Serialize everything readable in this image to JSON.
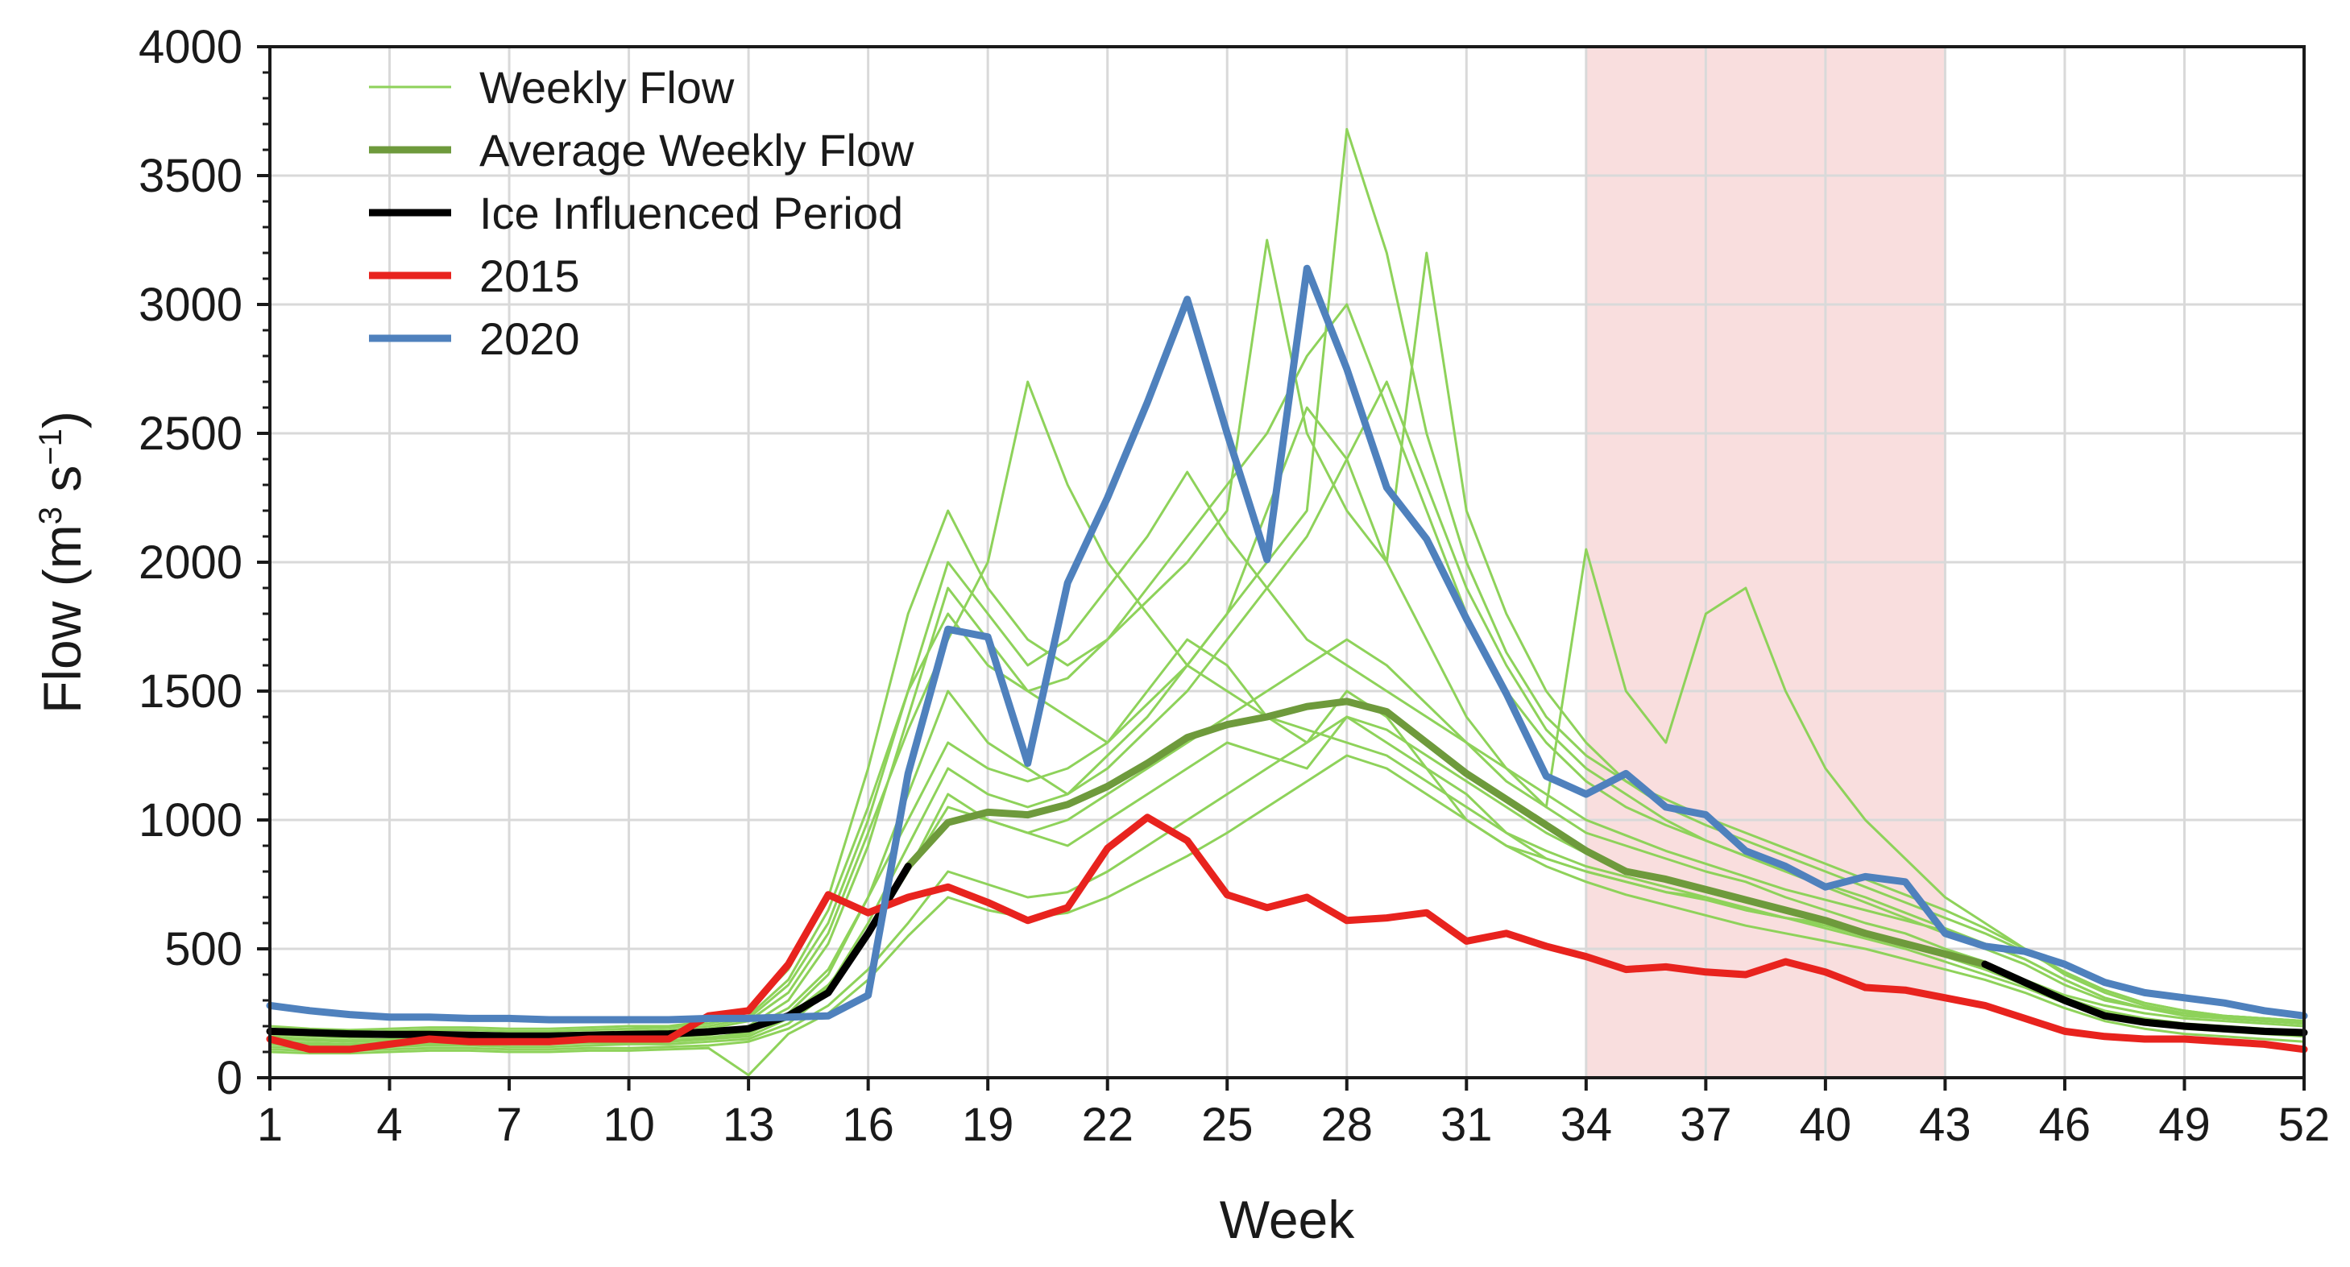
{
  "chart_data": {
    "type": "line",
    "title": "",
    "xlabel": "Week",
    "ylabel_main": "Flow (m",
    "ylabel_sup1": "3",
    "ylabel_mid": " s",
    "ylabel_sup2": "−1",
    "ylabel_end": ")",
    "xlim": [
      1,
      52
    ],
    "ylim": [
      0,
      4000
    ],
    "x_ticks": [
      1,
      4,
      7,
      10,
      13,
      16,
      19,
      22,
      25,
      28,
      31,
      34,
      37,
      40,
      43,
      46,
      49,
      52
    ],
    "y_ticks": [
      0,
      500,
      1000,
      1500,
      2000,
      2500,
      3000,
      3500,
      4000
    ],
    "grid": true,
    "legend_position": "top-left",
    "shaded_region": {
      "from_week": 34,
      "to_week": 43,
      "color": "#f9dede"
    },
    "legend": [
      {
        "key": "weekly",
        "label": "Weekly Flow",
        "color": "#8ed25a"
      },
      {
        "key": "average",
        "label": "Average Weekly Flow",
        "color": "#6e9a3c"
      },
      {
        "key": "ice",
        "label": "Ice Influenced Period",
        "color": "#000000"
      },
      {
        "key": "y2015",
        "label": "2015",
        "color": "#e8231e"
      },
      {
        "key": "y2020",
        "label": "2020",
        "color": "#4f81bd"
      }
    ],
    "series": [
      {
        "name": "Average Weekly Flow",
        "color": "#6e9a3c",
        "x": [
          17,
          18,
          19,
          20,
          21,
          22,
          23,
          24,
          25,
          26,
          27,
          28,
          29,
          30,
          31,
          32,
          33,
          34,
          35,
          36,
          37,
          38,
          39,
          40,
          41,
          42,
          43,
          44
        ],
        "values": [
          820,
          990,
          1030,
          1020,
          1060,
          1130,
          1220,
          1320,
          1370,
          1400,
          1440,
          1460,
          1420,
          1300,
          1180,
          1080,
          980,
          880,
          800,
          770,
          730,
          690,
          650,
          610,
          560,
          520,
          480,
          440
        ]
      },
      {
        "name": "Ice Influenced Period (early)",
        "color": "#000000",
        "x": [
          1,
          2,
          3,
          4,
          5,
          6,
          7,
          8,
          9,
          10,
          11,
          12,
          13,
          14,
          15,
          16,
          17
        ],
        "values": [
          180,
          175,
          170,
          168,
          168,
          165,
          162,
          162,
          165,
          168,
          170,
          178,
          190,
          240,
          330,
          560,
          820
        ]
      },
      {
        "name": "Ice Influenced Period (late)",
        "color": "#000000",
        "x": [
          44,
          45,
          46,
          47,
          48,
          49,
          50,
          51,
          52
        ],
        "values": [
          440,
          370,
          300,
          240,
          215,
          200,
          190,
          180,
          175
        ]
      },
      {
        "name": "2015",
        "color": "#e8231e",
        "x": [
          1,
          2,
          3,
          4,
          5,
          6,
          7,
          8,
          9,
          10,
          11,
          12,
          13,
          14,
          15,
          16,
          17,
          18,
          19,
          20,
          21,
          22,
          23,
          24,
          25,
          26,
          27,
          28,
          29,
          30,
          31,
          32,
          33,
          34,
          35,
          36,
          37,
          38,
          39,
          40,
          41,
          42,
          43,
          44,
          45,
          46,
          47,
          48,
          49,
          50,
          51,
          52
        ],
        "values": [
          150,
          110,
          110,
          130,
          150,
          140,
          140,
          140,
          150,
          150,
          150,
          240,
          260,
          440,
          710,
          640,
          700,
          740,
          680,
          610,
          660,
          890,
          1010,
          920,
          710,
          660,
          700,
          610,
          620,
          640,
          530,
          560,
          510,
          470,
          420,
          430,
          410,
          400,
          450,
          410,
          350,
          340,
          310,
          280,
          230,
          180,
          160,
          150,
          150,
          140,
          130,
          110
        ]
      },
      {
        "name": "2020",
        "color": "#4f81bd",
        "x": [
          1,
          2,
          3,
          4,
          5,
          6,
          7,
          8,
          9,
          10,
          11,
          12,
          13,
          14,
          15,
          16,
          17,
          18,
          19,
          20,
          21,
          22,
          23,
          24,
          25,
          26,
          27,
          28,
          29,
          30,
          31,
          32,
          33,
          34,
          35,
          36,
          37,
          38,
          39,
          40,
          41,
          42,
          43,
          44,
          45,
          46,
          47,
          48,
          49,
          50,
          51,
          52
        ],
        "values": [
          280,
          260,
          245,
          235,
          235,
          230,
          230,
          225,
          225,
          225,
          225,
          230,
          230,
          235,
          240,
          320,
          1180,
          1740,
          1710,
          1220,
          1920,
          2250,
          2620,
          3020,
          2500,
          2010,
          3140,
          2750,
          2290,
          2090,
          1780,
          1490,
          1170,
          1100,
          1180,
          1050,
          1020,
          880,
          820,
          740,
          780,
          760,
          560,
          510,
          490,
          440,
          370,
          330,
          310,
          290,
          260,
          240
        ]
      }
    ],
    "weekly_flow_traces": [
      [
        160,
        150,
        145,
        150,
        155,
        150,
        150,
        150,
        155,
        160,
        165,
        180,
        200,
        300,
        520,
        900,
        1400,
        1900,
        1700,
        1500,
        1400,
        1300,
        1500,
        1700,
        1600,
        1400,
        1300,
        1500,
        1400,
        1200,
        1000,
        900,
        850,
        800,
        760,
        720,
        700,
        650,
        620,
        600,
        560,
        520,
        480,
        430,
        380,
        320,
        280,
        250,
        230,
        220,
        210,
        200
      ],
      [
        140,
        130,
        130,
        135,
        140,
        140,
        135,
        135,
        140,
        140,
        145,
        150,
        170,
        250,
        400,
        700,
        1100,
        1500,
        1300,
        1200,
        1100,
        1250,
        1400,
        1600,
        1800,
        2200,
        2600,
        2400,
        2000,
        1700,
        1400,
        1200,
        1050,
        950,
        900,
        850,
        800,
        760,
        700,
        650,
        600,
        560,
        500,
        450,
        380,
        300,
        250,
        220,
        200,
        190,
        180,
        170
      ],
      [
        120,
        115,
        115,
        120,
        125,
        125,
        120,
        120,
        125,
        130,
        130,
        140,
        150,
        210,
        330,
        550,
        800,
        1100,
        1000,
        950,
        900,
        1000,
        1100,
        1200,
        1300,
        1250,
        1200,
        1400,
        1300,
        1200,
        1100,
        950,
        850,
        800,
        760,
        720,
        690,
        650,
        620,
        580,
        540,
        500,
        450,
        400,
        350,
        290,
        240,
        210,
        190,
        180,
        170,
        160
      ],
      [
        200,
        190,
        185,
        190,
        195,
        195,
        190,
        190,
        195,
        200,
        200,
        220,
        260,
        420,
        700,
        1200,
        1800,
        2200,
        1900,
        1700,
        1600,
        1700,
        1900,
        2100,
        2300,
        2500,
        2800,
        3000,
        2600,
        2200,
        1800,
        1500,
        1300,
        1150,
        1050,
        980,
        920,
        860,
        800,
        740,
        680,
        620,
        560,
        500,
        440,
        360,
        300,
        270,
        250,
        240,
        230,
        220
      ],
      [
        130,
        125,
        125,
        130,
        130,
        130,
        130,
        130,
        135,
        135,
        140,
        150,
        160,
        230,
        350,
        600,
        900,
        1200,
        1100,
        1050,
        1100,
        1200,
        1350,
        1500,
        1700,
        1900,
        2100,
        2400,
        2700,
        2300,
        1900,
        1600,
        1350,
        1200,
        1100,
        1000,
        920,
        860,
        800,
        750,
        700,
        640,
        580,
        520,
        460,
        380,
        310,
        270,
        250,
        230,
        220,
        210
      ],
      [
        170,
        160,
        155,
        160,
        165,
        165,
        160,
        160,
        165,
        170,
        175,
        190,
        220,
        330,
        560,
        950,
        1350,
        1700,
        2000,
        2700,
        2300,
        2000,
        1800,
        1600,
        1500,
        1400,
        1350,
        1300,
        1250,
        1150,
        1050,
        950,
        880,
        820,
        780,
        740,
        700,
        660,
        620,
        590,
        550,
        510,
        470,
        420,
        370,
        310,
        260,
        230,
        210,
        200,
        190,
        180
      ],
      [
        110,
        105,
        105,
        110,
        115,
        115,
        110,
        110,
        115,
        115,
        120,
        125,
        140,
        190,
        280,
        420,
        600,
        800,
        750,
        700,
        720,
        800,
        900,
        1000,
        1100,
        1200,
        1300,
        1400,
        1350,
        1250,
        1150,
        1050,
        950,
        870,
        810,
        760,
        720,
        680,
        640,
        600,
        560,
        520,
        470,
        420,
        360,
        300,
        250,
        220,
        200,
        190,
        180,
        170
      ],
      [
        190,
        180,
        175,
        180,
        185,
        185,
        180,
        180,
        185,
        190,
        195,
        210,
        240,
        380,
        650,
        1050,
        1500,
        1800,
        1600,
        1500,
        1550,
        1700,
        1850,
        2000,
        2200,
        3250,
        2500,
        2200,
        2000,
        3200,
        2200,
        1800,
        1500,
        1300,
        1150,
        1050,
        980,
        920,
        860,
        800,
        740,
        680,
        620,
        560,
        490,
        410,
        340,
        290,
        260,
        240,
        230,
        220
      ],
      [
        150,
        145,
        140,
        145,
        150,
        150,
        145,
        145,
        150,
        150,
        155,
        165,
        190,
        270,
        420,
        700,
        1000,
        1300,
        1200,
        1150,
        1200,
        1300,
        1450,
        1600,
        1800,
        2000,
        2200,
        3680,
        3200,
        2500,
        2000,
        1650,
        1400,
        1250,
        1150,
        1080,
        1010,
        950,
        890,
        830,
        770,
        710,
        650,
        580,
        500,
        410,
        340,
        290,
        260,
        240,
        230,
        220
      ],
      [
        140,
        135,
        130,
        135,
        140,
        140,
        135,
        135,
        140,
        140,
        145,
        155,
        175,
        240,
        360,
        550,
        800,
        1050,
        1000,
        950,
        1000,
        1100,
        1200,
        1300,
        1400,
        1500,
        1600,
        1700,
        1600,
        1450,
        1300,
        1150,
        1050,
        2050,
        1500,
        1300,
        1800,
        1900,
        1500,
        1200,
        1000,
        850,
        700,
        600,
        500,
        400,
        330,
        280,
        250,
        230,
        220,
        210
      ],
      [
        180,
        170,
        165,
        170,
        175,
        175,
        170,
        170,
        175,
        180,
        185,
        200,
        230,
        360,
        600,
        1000,
        1500,
        2000,
        1800,
        1600,
        1700,
        1900,
        2100,
        2350,
        2100,
        1900,
        1700,
        1600,
        1500,
        1400,
        1300,
        1200,
        1100,
        1000,
        940,
        880,
        830,
        780,
        730,
        690,
        650,
        610,
        570,
        520,
        460,
        380,
        310,
        270,
        240,
        230,
        220,
        210
      ],
      [
        100,
        95,
        95,
        100,
        105,
        105,
        100,
        100,
        105,
        105,
        110,
        115,
        10,
        170,
        250,
        380,
        550,
        700,
        650,
        620,
        640,
        700,
        780,
        860,
        950,
        1050,
        1150,
        1250,
        1200,
        1100,
        1000,
        900,
        820,
        760,
        710,
        670,
        630,
        590,
        560,
        530,
        500,
        460,
        420,
        380,
        330,
        270,
        220,
        190,
        170,
        160,
        150,
        140
      ]
    ]
  }
}
